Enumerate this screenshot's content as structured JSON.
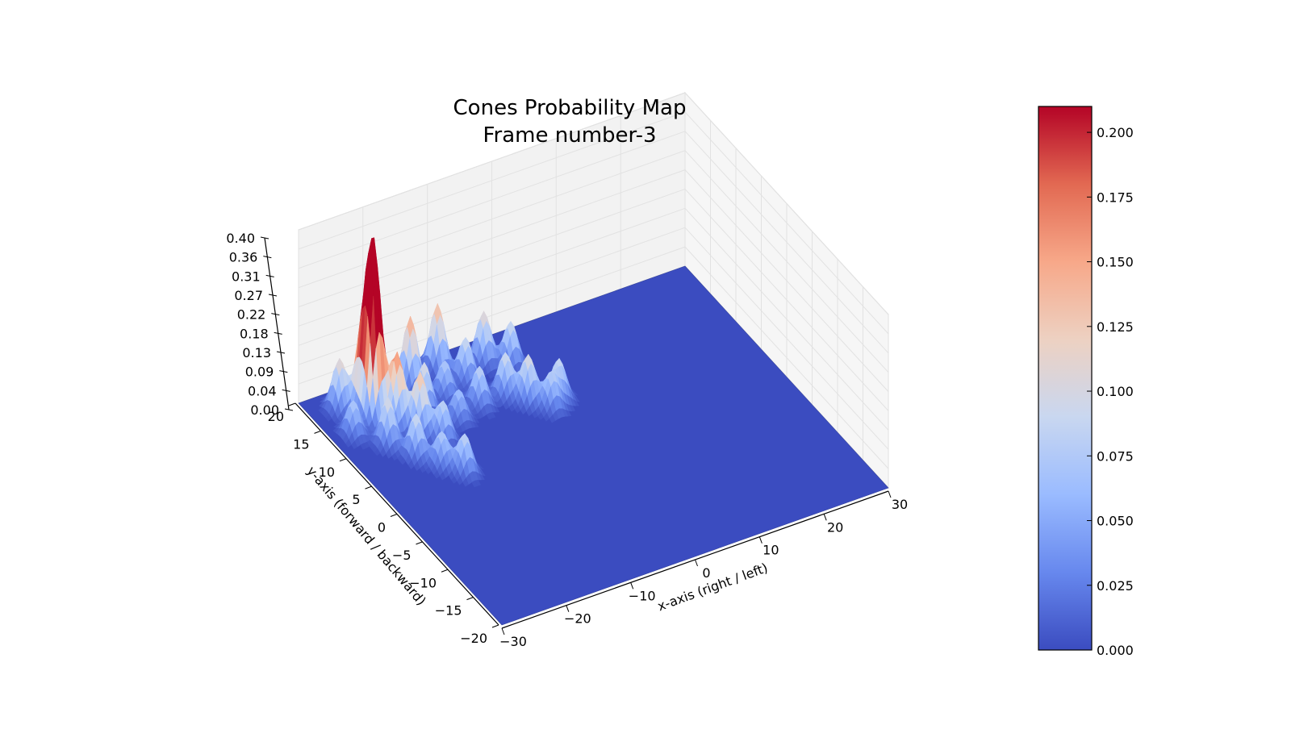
{
  "chart_data": {
    "type": "surface",
    "title": "Cones Probability Map",
    "subtitle": "Frame number-3",
    "xlabel": "x-axis (right / left)",
    "ylabel": "y-axis (forward / backward)",
    "zlabel": "",
    "xlim": [
      -30,
      30
    ],
    "ylim": [
      -20,
      20
    ],
    "zlim": [
      0,
      0.4
    ],
    "x_ticks": [
      "−30",
      "−20",
      "−10",
      "0",
      "10",
      "20",
      "30"
    ],
    "y_ticks": [
      "−20",
      "−15",
      "−10",
      "−5",
      "0",
      "5",
      "10",
      "15",
      "20"
    ],
    "z_ticks": [
      "0.00",
      "0.04",
      "0.09",
      "0.13",
      "0.18",
      "0.22",
      "0.27",
      "0.31",
      "0.36",
      "0.40"
    ],
    "colormap": "coolwarm",
    "colorbar": {
      "min": 0.0,
      "max": 0.21,
      "ticks": [
        "0.000",
        "0.025",
        "0.050",
        "0.075",
        "0.100",
        "0.125",
        "0.150",
        "0.175",
        "0.200"
      ],
      "stops": [
        "#3b4cc0",
        "#6788ee",
        "#9abbff",
        "#c9d7f0",
        "#edd1c2",
        "#f7a889",
        "#e26952",
        "#b40426"
      ]
    },
    "grid": true,
    "peaks": [
      {
        "x": -23.0,
        "y": 14.0,
        "z": 0.38
      },
      {
        "x": -23.5,
        "y": 15.5,
        "z": 0.19
      },
      {
        "x": -26.0,
        "y": 17.0,
        "z": 0.12
      },
      {
        "x": -21.0,
        "y": 12.0,
        "z": 0.17
      },
      {
        "x": -19.0,
        "y": 10.0,
        "z": 0.14
      },
      {
        "x": -17.0,
        "y": 8.0,
        "z": 0.09
      },
      {
        "x": -24.0,
        "y": 10.0,
        "z": 0.11
      },
      {
        "x": -22.0,
        "y": 7.0,
        "z": 0.1
      },
      {
        "x": -20.0,
        "y": 4.5,
        "z": 0.08
      },
      {
        "x": -18.0,
        "y": 2.5,
        "z": 0.09
      },
      {
        "x": -27.0,
        "y": 13.0,
        "z": 0.08
      },
      {
        "x": -15.0,
        "y": 17.0,
        "z": 0.16
      },
      {
        "x": -10.0,
        "y": 18.0,
        "z": 0.15
      },
      {
        "x": -16.0,
        "y": 13.0,
        "z": 0.11
      },
      {
        "x": -12.0,
        "y": 14.0,
        "z": 0.08
      },
      {
        "x": -8.0,
        "y": 15.0,
        "z": 0.1
      },
      {
        "x": -4.0,
        "y": 16.5,
        "z": 0.12
      },
      {
        "x": -1.0,
        "y": 15.0,
        "z": 0.1
      },
      {
        "x": -13.0,
        "y": 10.0,
        "z": 0.07
      },
      {
        "x": -9.0,
        "y": 11.0,
        "z": 0.09
      },
      {
        "x": -5.0,
        "y": 11.0,
        "z": 0.1
      },
      {
        "x": -3.0,
        "y": 9.0,
        "z": 0.11
      },
      {
        "x": -1.0,
        "y": 7.0,
        "z": 0.08
      },
      {
        "x": 1.0,
        "y": 8.0,
        "z": 0.09
      }
    ]
  }
}
